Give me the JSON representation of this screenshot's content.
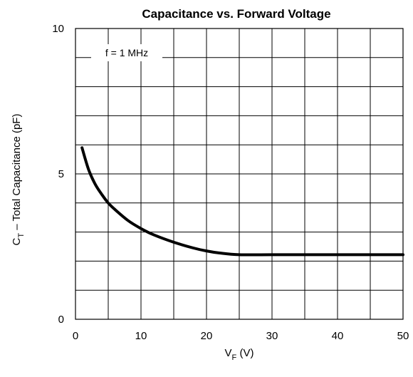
{
  "chart_data": {
    "type": "line",
    "title": "Capacitance vs. Forward Voltage",
    "xlabel_main": "V",
    "xlabel_sub": "F",
    "xlabel_unit": " (V)",
    "ylabel_main": "C",
    "ylabel_sub": "T",
    "ylabel_rest": " – Total Capacitance (pF)",
    "annotation": "f = 1 MHz",
    "xlim": [
      0,
      50
    ],
    "ylim": [
      0,
      10
    ],
    "x_ticks": [
      0,
      10,
      20,
      30,
      40,
      50
    ],
    "y_ticks": [
      0,
      5,
      10
    ],
    "x_tick_labels": [
      "0",
      "10",
      "20",
      "30",
      "40",
      "50"
    ],
    "y_tick_labels": [
      "0",
      "5",
      "10"
    ],
    "grid": true,
    "series": [
      {
        "x": [
          1,
          2,
          3,
          4,
          5,
          6,
          8,
          10,
          12,
          15,
          18,
          20,
          22,
          25,
          30,
          35,
          40,
          45,
          50
        ],
        "y": [
          5.9,
          5.15,
          4.65,
          4.3,
          4.0,
          3.78,
          3.4,
          3.12,
          2.9,
          2.65,
          2.45,
          2.35,
          2.28,
          2.22,
          2.22,
          2.22,
          2.22,
          2.22,
          2.22
        ]
      }
    ]
  }
}
